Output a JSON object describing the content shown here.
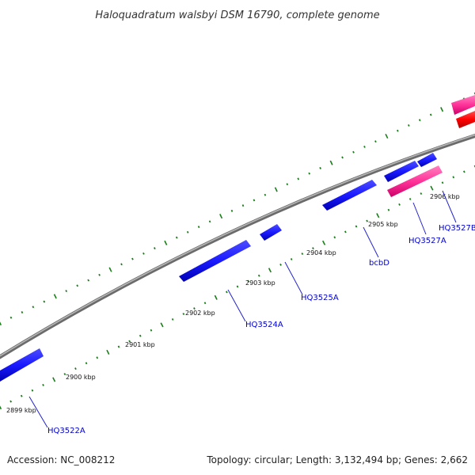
{
  "title": "Haloquadratum walsbyi DSM 16790, complete genome",
  "footer": {
    "accession": "Accession: NC_008212",
    "summary": "Topology: circular; Length: 3,132,494 bp; Genes: 2,662"
  },
  "ticks": [
    "2899 kbp",
    "2900 kbp",
    "2901 kbp",
    "2902 kbp",
    "2903 kbp",
    "2904 kbp",
    "2905 kbp",
    "2906 kbp"
  ],
  "gene_labels": [
    "HQ3522A",
    "HQ3524A",
    "HQ3525A",
    "bcbD",
    "HQ3527A",
    "HQ3527B"
  ],
  "colors": {
    "cds": "#1a1aff",
    "rna": "#ff3399",
    "rrna": "#ff0000",
    "backbone": "#808080",
    "tick": "#1a7f1a",
    "label": "#0000cc"
  }
}
